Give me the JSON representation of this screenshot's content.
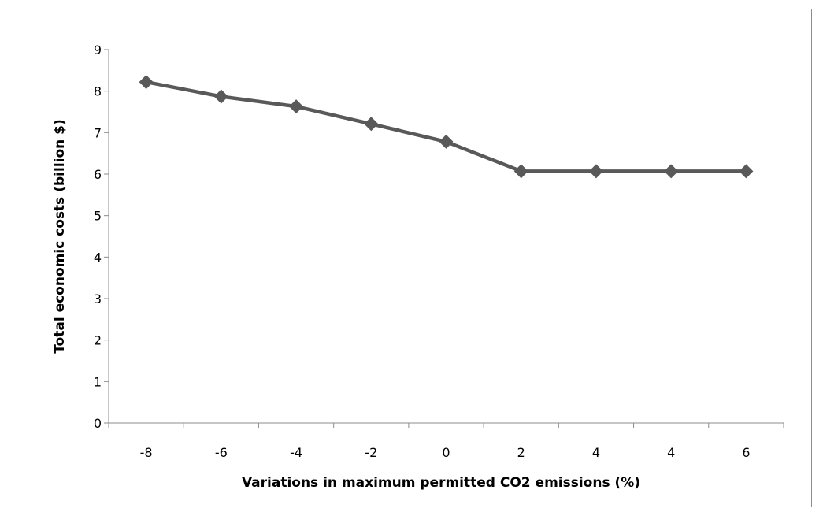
{
  "chart_data": {
    "type": "line",
    "title": "",
    "xlabel": "Variations in maximum permitted CO2 emissions (%)",
    "ylabel": "Total economic costs (billion $)",
    "categories": [
      "-8",
      "-6",
      "-4",
      "-2",
      "0",
      "2",
      "4",
      "4",
      "6"
    ],
    "series": [
      {
        "values": [
          8.22,
          7.87,
          7.63,
          7.21,
          6.78,
          6.07,
          6.07,
          6.07,
          6.07
        ],
        "color": "#595959",
        "marker": "diamond"
      }
    ],
    "ylim": [
      0,
      9
    ],
    "yticks": [
      "0",
      "1",
      "2",
      "3",
      "4",
      "5",
      "6",
      "7",
      "8",
      "9"
    ],
    "grid": false,
    "legend": "none"
  }
}
